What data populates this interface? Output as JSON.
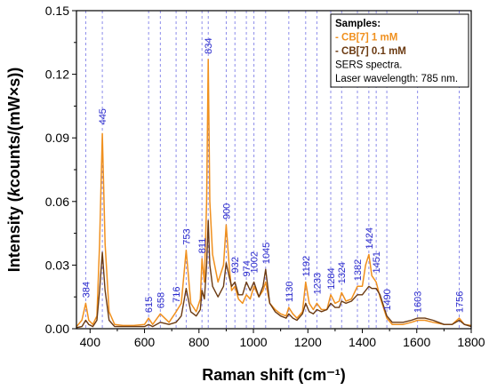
{
  "chart_data": {
    "type": "line",
    "xlabel": "Raman shift (cm⁻¹)",
    "ylabel_parts": [
      "Intensity (",
      "k",
      "counts/(mW×s))"
    ],
    "xlim": [
      350,
      1800
    ],
    "ylim": [
      0,
      0.15
    ],
    "x_ticks": [
      400,
      600,
      800,
      1000,
      1200,
      1400,
      1600,
      1800
    ],
    "x_tick_labels": [
      "400",
      "600",
      "800",
      "1000",
      "1200",
      "1400",
      "1600",
      "1800"
    ],
    "y_ticks": [
      0.0,
      0.03,
      0.06,
      0.09,
      0.12,
      0.15
    ],
    "y_tick_labels": [
      "0.00",
      "0.03",
      "0.06",
      "0.09",
      "0.12",
      "0.15"
    ],
    "grid": false,
    "reference_lines": {
      "style": "dashed",
      "color": "#8080e8",
      "peaks": [
        384,
        445,
        615,
        658,
        716,
        753,
        811,
        834,
        900,
        932,
        974,
        1002,
        1045,
        1130,
        1192,
        1233,
        1284,
        1324,
        1382,
        1424,
        1451,
        1490,
        1603,
        1756
      ],
      "labels": [
        "384",
        "445",
        "615",
        "658",
        "716",
        "753",
        "811",
        "834",
        "900",
        "932",
        "974",
        "1002",
        "1045",
        "1130",
        "1192",
        "1233",
        "1284",
        "1324",
        "1382",
        "1424",
        "1451",
        "1490",
        "1603",
        "1756"
      ],
      "label_color": "#2a2acc"
    },
    "legend": {
      "placement": "top-right",
      "title": "Samples:",
      "notes": [
        "SERS spectra.",
        "Laser wavelength: 785 nm."
      ]
    },
    "series": [
      {
        "name": "CB[7] 1 mM",
        "color": "#f0901e",
        "x": [
          350,
          370,
          384,
          395,
          410,
          425,
          435,
          445,
          455,
          470,
          490,
          520,
          560,
          600,
          615,
          630,
          658,
          690,
          716,
          735,
          753,
          770,
          790,
          805,
          811,
          820,
          828,
          834,
          840,
          850,
          870,
          890,
          900,
          912,
          920,
          932,
          945,
          960,
          974,
          988,
          1002,
          1020,
          1035,
          1045,
          1060,
          1080,
          1100,
          1120,
          1130,
          1145,
          1160,
          1180,
          1192,
          1205,
          1220,
          1233,
          1250,
          1270,
          1284,
          1300,
          1315,
          1324,
          1340,
          1360,
          1382,
          1400,
          1412,
          1424,
          1435,
          1451,
          1465,
          1490,
          1510,
          1550,
          1580,
          1603,
          1630,
          1660,
          1700,
          1730,
          1756,
          1775,
          1800
        ],
        "y": [
          0.001,
          0.004,
          0.012,
          0.004,
          0.002,
          0.006,
          0.04,
          0.092,
          0.04,
          0.008,
          0.002,
          0.0015,
          0.0015,
          0.002,
          0.005,
          0.002,
          0.007,
          0.003,
          0.008,
          0.012,
          0.037,
          0.012,
          0.008,
          0.014,
          0.033,
          0.022,
          0.06,
          0.127,
          0.06,
          0.035,
          0.022,
          0.03,
          0.049,
          0.028,
          0.018,
          0.02,
          0.014,
          0.012,
          0.016,
          0.014,
          0.02,
          0.015,
          0.018,
          0.022,
          0.012,
          0.009,
          0.007,
          0.006,
          0.01,
          0.007,
          0.005,
          0.008,
          0.022,
          0.012,
          0.009,
          0.012,
          0.009,
          0.009,
          0.016,
          0.012,
          0.013,
          0.017,
          0.013,
          0.014,
          0.02,
          0.02,
          0.03,
          0.035,
          0.025,
          0.022,
          0.015,
          0.005,
          0.002,
          0.002,
          0.003,
          0.004,
          0.004,
          0.003,
          0.002,
          0.002,
          0.005,
          0.002,
          0.0015
        ]
      },
      {
        "name": "CB[7] 0.1 mM",
        "color": "#6b3a12",
        "x": [
          350,
          370,
          384,
          395,
          410,
          425,
          435,
          445,
          455,
          470,
          490,
          520,
          560,
          600,
          615,
          630,
          658,
          690,
          716,
          735,
          753,
          770,
          790,
          805,
          811,
          820,
          828,
          834,
          840,
          850,
          870,
          890,
          900,
          912,
          920,
          932,
          945,
          960,
          974,
          988,
          1002,
          1020,
          1035,
          1045,
          1060,
          1080,
          1100,
          1120,
          1130,
          1145,
          1160,
          1180,
          1192,
          1205,
          1220,
          1233,
          1250,
          1270,
          1284,
          1300,
          1315,
          1324,
          1340,
          1360,
          1382,
          1400,
          1412,
          1424,
          1435,
          1451,
          1465,
          1490,
          1510,
          1550,
          1580,
          1603,
          1630,
          1660,
          1700,
          1730,
          1756,
          1775,
          1800
        ],
        "y": [
          0.0005,
          0.001,
          0.004,
          0.002,
          0.001,
          0.004,
          0.018,
          0.036,
          0.018,
          0.004,
          0.001,
          0.001,
          0.001,
          0.001,
          0.002,
          0.001,
          0.003,
          0.002,
          0.003,
          0.006,
          0.019,
          0.008,
          0.006,
          0.009,
          0.018,
          0.014,
          0.03,
          0.051,
          0.03,
          0.02,
          0.015,
          0.02,
          0.031,
          0.024,
          0.02,
          0.022,
          0.016,
          0.016,
          0.022,
          0.018,
          0.022,
          0.015,
          0.02,
          0.028,
          0.012,
          0.008,
          0.006,
          0.005,
          0.007,
          0.005,
          0.004,
          0.007,
          0.012,
          0.008,
          0.007,
          0.009,
          0.008,
          0.009,
          0.012,
          0.01,
          0.01,
          0.013,
          0.012,
          0.013,
          0.016,
          0.016,
          0.018,
          0.02,
          0.019,
          0.019,
          0.016,
          0.006,
          0.003,
          0.003,
          0.004,
          0.005,
          0.005,
          0.004,
          0.002,
          0.002,
          0.004,
          0.002,
          0.001
        ]
      }
    ]
  }
}
